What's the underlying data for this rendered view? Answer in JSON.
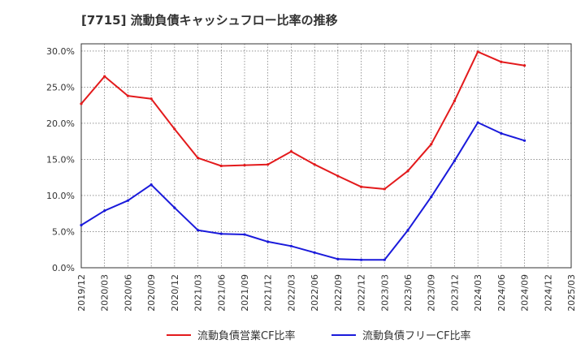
{
  "chart_data": {
    "type": "line",
    "title": "[7715]  流動負債キャッシュフロー比率の推移",
    "xlabel": "",
    "ylabel": "",
    "ylim": [
      0,
      31
    ],
    "y_ticks": [
      "0.0%",
      "5.0%",
      "10.0%",
      "15.0%",
      "20.0%",
      "25.0%",
      "30.0%"
    ],
    "y_tick_values": [
      0,
      5,
      10,
      15,
      20,
      25,
      30
    ],
    "categories": [
      "2019/12",
      "2020/03",
      "2020/06",
      "2020/09",
      "2020/12",
      "2021/03",
      "2021/06",
      "2021/09",
      "2021/12",
      "2022/03",
      "2022/06",
      "2022/09",
      "2022/12",
      "2023/03",
      "2023/06",
      "2023/09",
      "2023/12",
      "2024/03",
      "2024/06",
      "2024/09",
      "2024/12",
      "2025/03"
    ],
    "grid": true,
    "legend_position": "bottom",
    "series": [
      {
        "name": "流動負債営業CF比率",
        "color": "#e31a1c",
        "values": [
          22.7,
          26.5,
          23.8,
          23.4,
          19.2,
          15.2,
          14.1,
          14.2,
          14.3,
          16.1,
          14.3,
          12.7,
          11.2,
          10.9,
          13.4,
          17.1,
          23.1,
          29.9,
          28.5,
          28.0,
          null,
          null
        ]
      },
      {
        "name": "流動負債フリーCF比率",
        "color": "#1a1adb",
        "values": [
          5.9,
          7.9,
          9.3,
          11.5,
          8.3,
          5.2,
          4.7,
          4.6,
          3.6,
          3.0,
          2.1,
          1.2,
          1.1,
          1.1,
          5.2,
          9.8,
          14.8,
          20.1,
          18.6,
          17.6,
          null,
          null
        ]
      }
    ]
  }
}
